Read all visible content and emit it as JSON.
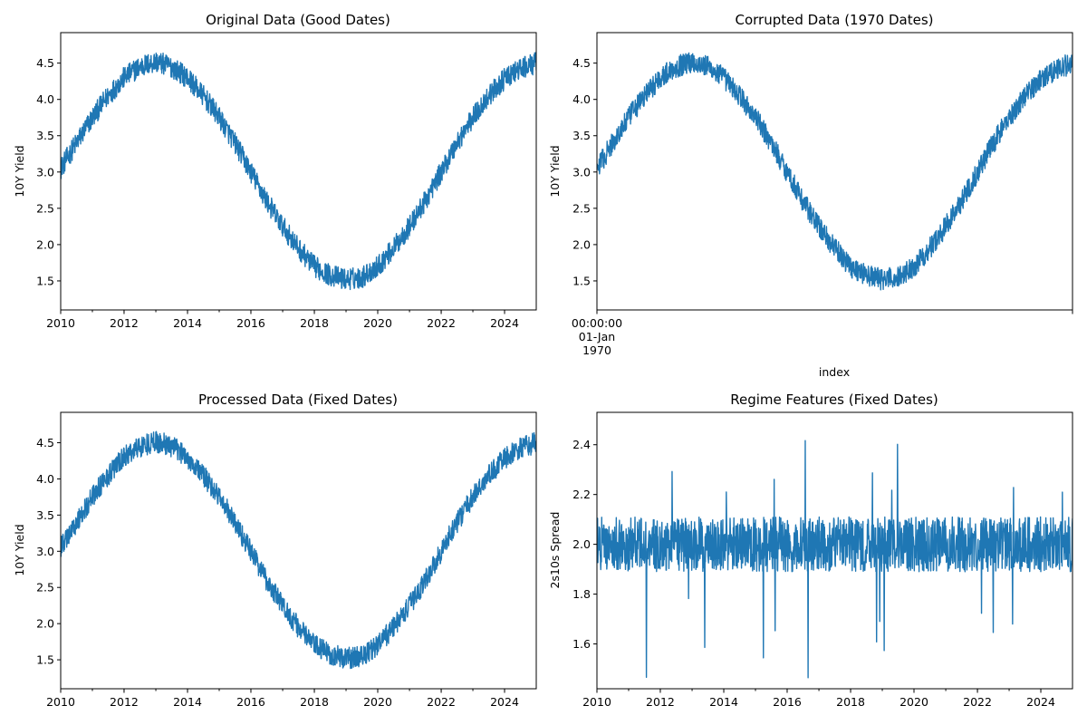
{
  "colors": {
    "series": "#1f77b4"
  },
  "chart_data": [
    {
      "type": "line",
      "title": "Original Data (Good Dates)",
      "xlabel": "",
      "ylabel": "10Y Yield",
      "x_axis": "date",
      "xlim": [
        "2010-01-01",
        "2024-12-31"
      ],
      "ylim": [
        1.1,
        4.92
      ],
      "xticks": [
        "2010",
        "2012",
        "2014",
        "2016",
        "2018",
        "2020",
        "2022",
        "2024"
      ],
      "yticks": [
        1.5,
        2.0,
        2.5,
        3.0,
        3.5,
        4.0,
        4.5
      ],
      "ytick_labels": [
        "1.5",
        "2.0",
        "2.5",
        "3.0",
        "3.5",
        "4.0",
        "4.5"
      ],
      "grid": false,
      "series": [
        {
          "x": [
            "2010-01-01",
            "2010-07-01",
            "2011-01-01",
            "2011-07-01",
            "2012-01-01",
            "2012-07-01",
            "2013-01-01",
            "2013-07-01",
            "2014-01-01",
            "2014-07-01",
            "2015-01-01",
            "2015-07-01",
            "2016-01-01",
            "2016-07-01",
            "2017-01-01",
            "2017-07-01",
            "2018-01-01",
            "2018-07-01",
            "2019-01-01",
            "2019-07-01",
            "2020-01-01",
            "2020-07-01",
            "2021-01-01",
            "2021-07-01",
            "2022-01-01",
            "2022-07-01",
            "2023-01-01",
            "2023-07-01",
            "2024-01-01",
            "2024-07-01",
            "2024-12-31"
          ],
          "values": [
            3.05,
            3.4,
            3.75,
            4.05,
            4.3,
            4.45,
            4.52,
            4.45,
            4.3,
            4.05,
            3.75,
            3.4,
            3.0,
            2.6,
            2.25,
            1.95,
            1.7,
            1.58,
            1.52,
            1.55,
            1.7,
            1.95,
            2.25,
            2.6,
            3.0,
            3.4,
            3.75,
            4.05,
            4.28,
            4.42,
            4.5
          ],
          "band": 0.3
        }
      ]
    },
    {
      "type": "line",
      "title": "Corrupted Data (1970 Dates)",
      "xlabel": "index",
      "ylabel": "10Y Yield",
      "ylim": [
        1.1,
        4.92
      ],
      "xticks": [
        "00:00:00\n01-Jan\n1970"
      ],
      "yticks": [
        1.5,
        2.0,
        2.5,
        3.0,
        3.5,
        4.0,
        4.5
      ],
      "ytick_labels": [
        "1.5",
        "2.0",
        "2.5",
        "3.0",
        "3.5",
        "4.0",
        "4.5"
      ],
      "grid": false,
      "series": [
        {
          "values": [
            3.05,
            3.4,
            3.75,
            4.05,
            4.3,
            4.45,
            4.52,
            4.45,
            4.3,
            4.05,
            3.75,
            3.4,
            3.0,
            2.6,
            2.25,
            1.95,
            1.7,
            1.58,
            1.52,
            1.55,
            1.7,
            1.95,
            2.25,
            2.6,
            3.0,
            3.4,
            3.75,
            4.05,
            4.28,
            4.42,
            4.5
          ],
          "band": 0.3
        }
      ]
    },
    {
      "type": "line",
      "title": "Processed Data (Fixed Dates)",
      "xlabel": "",
      "ylabel": "10Y Yield",
      "x_axis": "date",
      "xlim": [
        "2010-01-01",
        "2024-12-31"
      ],
      "ylim": [
        1.1,
        4.92
      ],
      "xticks": [
        "2010",
        "2012",
        "2014",
        "2016",
        "2018",
        "2020",
        "2022",
        "2024"
      ],
      "yticks": [
        1.5,
        2.0,
        2.5,
        3.0,
        3.5,
        4.0,
        4.5
      ],
      "ytick_labels": [
        "1.5",
        "2.0",
        "2.5",
        "3.0",
        "3.5",
        "4.0",
        "4.5"
      ],
      "grid": false,
      "series": [
        {
          "x": [
            "2010-01-01",
            "2010-07-01",
            "2011-01-01",
            "2011-07-01",
            "2012-01-01",
            "2012-07-01",
            "2013-01-01",
            "2013-07-01",
            "2014-01-01",
            "2014-07-01",
            "2015-01-01",
            "2015-07-01",
            "2016-01-01",
            "2016-07-01",
            "2017-01-01",
            "2017-07-01",
            "2018-01-01",
            "2018-07-01",
            "2019-01-01",
            "2019-07-01",
            "2020-01-01",
            "2020-07-01",
            "2021-01-01",
            "2021-07-01",
            "2022-01-01",
            "2022-07-01",
            "2023-01-01",
            "2023-07-01",
            "2024-01-01",
            "2024-07-01",
            "2024-12-31"
          ],
          "values": [
            3.05,
            3.4,
            3.75,
            4.05,
            4.3,
            4.45,
            4.52,
            4.45,
            4.3,
            4.05,
            3.75,
            3.4,
            3.0,
            2.6,
            2.25,
            1.95,
            1.7,
            1.58,
            1.52,
            1.55,
            1.7,
            1.95,
            2.25,
            2.6,
            3.0,
            3.4,
            3.75,
            4.05,
            4.28,
            4.42,
            4.5
          ],
          "band": 0.3
        }
      ]
    },
    {
      "type": "line",
      "title": "Regime Features (Fixed Dates)",
      "xlabel": "",
      "ylabel": "2s10s Spread",
      "x_axis": "date",
      "xlim": [
        "2010-01-01",
        "2024-12-31"
      ],
      "ylim": [
        1.42,
        2.53
      ],
      "xticks": [
        "2010",
        "2012",
        "2014",
        "2016",
        "2018",
        "2020",
        "2022",
        "2024"
      ],
      "yticks": [
        1.6,
        1.8,
        2.0,
        2.2,
        2.4
      ],
      "ytick_labels": [
        "1.6",
        "1.8",
        "2.0",
        "2.2",
        "2.4"
      ],
      "grid": false,
      "series": [
        {
          "x": [
            "2010-01-01",
            "2024-12-31"
          ],
          "values": [
            2.0,
            2.0
          ],
          "band": 0.22,
          "min": 1.46,
          "max": 2.49
        }
      ]
    }
  ]
}
